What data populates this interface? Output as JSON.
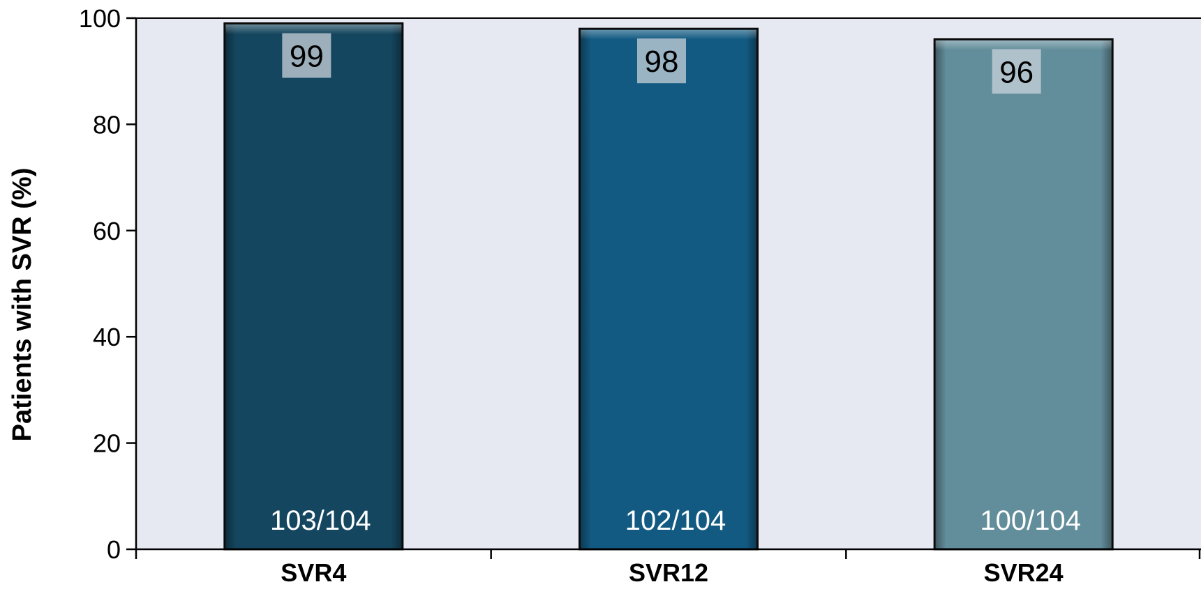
{
  "chart_data": {
    "type": "bar",
    "categories": [
      "SVR4",
      "SVR12",
      "SVR24"
    ],
    "values": [
      99,
      98,
      96
    ],
    "value_labels": [
      "99",
      "98",
      "96"
    ],
    "count_labels": [
      "103/104",
      "102/104",
      "100/104"
    ],
    "title": "",
    "xlabel": "",
    "ylabel": "Patients with SVR (%)",
    "ylim": [
      0,
      100
    ],
    "yticks": [
      0,
      20,
      40,
      60,
      80,
      100
    ],
    "grid": false,
    "legend": "none",
    "colors": {
      "plot_background": "#e6e9f2",
      "bars": [
        "#15465f",
        "#125a82",
        "#628d9a"
      ],
      "value_label_box": "#c9d3d9",
      "axis": "#000000"
    }
  }
}
